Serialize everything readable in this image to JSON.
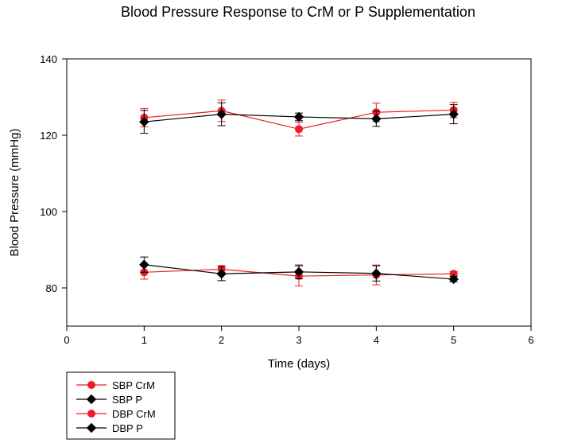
{
  "chart_data": {
    "type": "line",
    "title": "Blood Pressure Response to CrM or P Supplementation",
    "xlabel": "Time (days)",
    "ylabel": "Blood Pressure (mmHg)",
    "xlim": [
      0,
      6
    ],
    "ylim": [
      70,
      140
    ],
    "xticks": [
      0,
      1,
      2,
      3,
      4,
      5,
      6
    ],
    "yticks": [
      80,
      100,
      120,
      140
    ],
    "grid": false,
    "legend_position": "bottom-left",
    "x": [
      1,
      2,
      3,
      4,
      5
    ],
    "series": [
      {
        "name": "SBP CrM",
        "color": "#ee1c25",
        "marker": "circle",
        "values": [
          124.6,
          126.4,
          121.6,
          126.0,
          126.6
        ],
        "errors": [
          2.4,
          2.8,
          1.8,
          2.4,
          2.0
        ]
      },
      {
        "name": "SBP P",
        "color": "#000000",
        "marker": "diamond",
        "values": [
          123.5,
          125.5,
          124.8,
          124.3,
          125.5
        ],
        "errors": [
          3.0,
          3.0,
          1.0,
          2.0,
          2.5
        ]
      },
      {
        "name": "DBP CrM",
        "color": "#ee1c25",
        "marker": "circle",
        "values": [
          84.1,
          84.9,
          83.1,
          83.4,
          83.7
        ],
        "errors": [
          1.8,
          1.0,
          2.6,
          2.6,
          0.6
        ]
      },
      {
        "name": "DBP P",
        "color": "#000000",
        "marker": "diamond",
        "values": [
          86.1,
          83.7,
          84.2,
          83.8,
          82.3
        ],
        "errors": [
          2.0,
          1.8,
          1.8,
          2.0,
          0.7
        ]
      }
    ]
  }
}
